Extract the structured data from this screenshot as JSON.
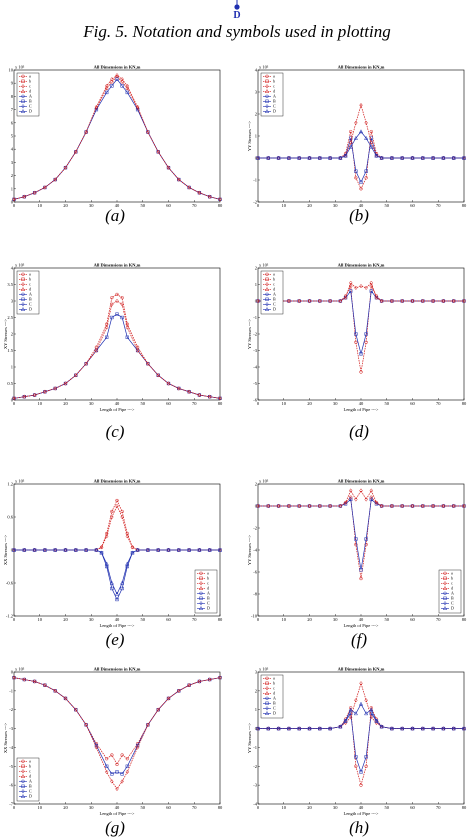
{
  "caption": "Fig.  5.  Notation and symbols used in plotting",
  "top_marker_letter": "D",
  "colors": {
    "red": "#d01818",
    "blue": "#1f2fb0",
    "axis": "#000000"
  },
  "chart_data": [
    {
      "id": "a",
      "label": "(a)",
      "type": "line",
      "title": "All Dimensions in KN,m",
      "xlabel": "",
      "ylabel": "",
      "xlim": [
        0,
        80
      ],
      "ylim": [
        0,
        10
      ],
      "yticks": [
        0,
        1,
        2,
        3,
        4,
        5,
        6,
        7,
        8,
        9,
        10
      ],
      "exponent": "x 10³",
      "legend": [
        "a",
        "b",
        "c",
        "d",
        "A",
        "B",
        "C",
        "D"
      ],
      "legend_position": "top-left",
      "x": [
        0,
        4,
        8,
        12,
        16,
        20,
        24,
        28,
        32,
        36,
        38,
        40,
        42,
        44,
        48,
        52,
        56,
        60,
        64,
        68,
        72,
        76,
        80
      ],
      "series": [
        {
          "values": [
            0.2,
            0.4,
            0.7,
            1.1,
            1.7,
            2.6,
            3.8,
            5.3,
            7.1,
            8.6,
            9.1,
            9.5,
            9.1,
            8.6,
            7.1,
            5.3,
            3.8,
            2.6,
            1.7,
            1.1,
            0.7,
            0.4,
            0.2
          ]
        },
        {
          "values": [
            0.2,
            0.4,
            0.7,
            1.1,
            1.7,
            2.6,
            3.8,
            5.3,
            7.0,
            8.3,
            8.8,
            9.3,
            8.8,
            8.3,
            7.0,
            5.3,
            3.8,
            2.6,
            1.7,
            1.1,
            0.7,
            0.4,
            0.2
          ]
        },
        {
          "values": [
            0.2,
            0.4,
            0.7,
            1.1,
            1.7,
            2.6,
            3.8,
            5.3,
            7.2,
            8.8,
            9.3,
            9.6,
            9.3,
            8.8,
            7.2,
            5.3,
            3.8,
            2.6,
            1.7,
            1.1,
            0.7,
            0.4,
            0.2
          ]
        }
      ]
    },
    {
      "id": "b",
      "label": "(b)",
      "type": "line",
      "title": "All Dimensions in KN,m",
      "xlabel": "",
      "ylabel": "YY Stresses --->",
      "xlim": [
        0,
        80
      ],
      "ylim": [
        -2,
        4
      ],
      "yticks": [
        -2,
        -1,
        0,
        1,
        2,
        3,
        4
      ],
      "exponent": "x 10³",
      "legend": [
        "a",
        "b",
        "c",
        "d",
        "A",
        "B",
        "C",
        "D"
      ],
      "legend_position": "top-left",
      "x": [
        0,
        4,
        8,
        12,
        16,
        20,
        24,
        28,
        32,
        34,
        36,
        38,
        40,
        42,
        44,
        46,
        48,
        52,
        56,
        60,
        64,
        68,
        72,
        76,
        80
      ],
      "series": [
        {
          "values": [
            0,
            0,
            0,
            0,
            0,
            0,
            0,
            0,
            0,
            0.2,
            1.2,
            -0.9,
            -1.4,
            -0.9,
            1.2,
            0.2,
            0,
            0,
            0,
            0,
            0,
            0,
            0,
            0,
            0
          ]
        },
        {
          "values": [
            0,
            0,
            0,
            0,
            0,
            0,
            0,
            0,
            0,
            0.1,
            0.9,
            -0.6,
            -1.1,
            -0.6,
            0.9,
            0.1,
            0,
            0,
            0,
            0,
            0,
            0,
            0,
            0,
            0
          ]
        },
        {
          "values": [
            0,
            0,
            0,
            0,
            0,
            0,
            0,
            0,
            0,
            0.1,
            0.7,
            1.6,
            2.4,
            1.6,
            0.7,
            0.1,
            0,
            0,
            0,
            0,
            0,
            0,
            0,
            0,
            0
          ]
        },
        {
          "values": [
            0,
            0,
            0,
            0,
            0,
            0,
            0,
            0,
            0,
            0.1,
            0.5,
            0.9,
            1.2,
            0.9,
            0.5,
            0.1,
            0,
            0,
            0,
            0,
            0,
            0,
            0,
            0,
            0
          ]
        }
      ]
    },
    {
      "id": "c",
      "label": "(c)",
      "type": "line",
      "title": "All Dimensions in KN,m",
      "xlabel": "Length of Pipe --->",
      "ylabel": "XY Stresses --->",
      "xlim": [
        0,
        80
      ],
      "ylim": [
        0,
        4
      ],
      "yticks": [
        0,
        0.5,
        1,
        1.5,
        2,
        2.5,
        3,
        3.5,
        4
      ],
      "exponent": "x 10³",
      "legend": [
        "a",
        "b",
        "c",
        "d",
        "A",
        "B",
        "C",
        "D"
      ],
      "legend_position": "top-left",
      "x": [
        0,
        4,
        8,
        12,
        16,
        20,
        24,
        28,
        32,
        36,
        38,
        40,
        42,
        44,
        48,
        52,
        56,
        60,
        64,
        68,
        72,
        76,
        80
      ],
      "series": [
        {
          "values": [
            0.05,
            0.1,
            0.15,
            0.25,
            0.35,
            0.5,
            0.75,
            1.1,
            1.6,
            2.3,
            3.1,
            3.2,
            3.1,
            2.3,
            1.6,
            1.1,
            0.75,
            0.5,
            0.35,
            0.25,
            0.15,
            0.1,
            0.05
          ]
        },
        {
          "values": [
            0.05,
            0.1,
            0.15,
            0.25,
            0.35,
            0.5,
            0.75,
            1.1,
            1.5,
            1.9,
            2.5,
            2.6,
            2.5,
            1.9,
            1.5,
            1.1,
            0.75,
            0.5,
            0.35,
            0.25,
            0.15,
            0.1,
            0.05
          ]
        },
        {
          "values": [
            0.05,
            0.1,
            0.15,
            0.25,
            0.35,
            0.5,
            0.75,
            1.1,
            1.5,
            2.2,
            2.9,
            3.0,
            2.9,
            2.2,
            1.5,
            1.1,
            0.75,
            0.5,
            0.35,
            0.25,
            0.15,
            0.1,
            0.05
          ]
        }
      ]
    },
    {
      "id": "d",
      "label": "(d)",
      "type": "line",
      "title": "All Dimensions in KN,m",
      "xlabel": "Length of Pipe --->",
      "ylabel": "YY Stresses --->",
      "xlim": [
        0,
        80
      ],
      "ylim": [
        -6,
        2
      ],
      "yticks": [
        -6,
        -5,
        -4,
        -3,
        -2,
        -1,
        0,
        1,
        2
      ],
      "exponent": "x 10³",
      "legend": [
        "a",
        "b",
        "c",
        "d",
        "A",
        "B",
        "C",
        "D"
      ],
      "legend_position": "top-left",
      "x": [
        0,
        4,
        8,
        12,
        16,
        20,
        24,
        28,
        32,
        34,
        36,
        38,
        40,
        42,
        44,
        46,
        48,
        52,
        56,
        60,
        64,
        68,
        72,
        76,
        80
      ],
      "series": [
        {
          "values": [
            0,
            0,
            0,
            0,
            0,
            0,
            0,
            0,
            0,
            0.3,
            0.9,
            -2.5,
            -4.3,
            -2.5,
            0.9,
            0.3,
            0,
            0,
            0,
            0,
            0,
            0,
            0,
            0,
            0
          ]
        },
        {
          "values": [
            0,
            0,
            0,
            0,
            0,
            0,
            0,
            0,
            0,
            0.2,
            0.6,
            -2.0,
            -3.2,
            -2.0,
            0.6,
            0.2,
            0,
            0,
            0,
            0,
            0,
            0,
            0,
            0,
            0
          ]
        },
        {
          "values": [
            0,
            0,
            0,
            0,
            0,
            0,
            0,
            0,
            0,
            0.2,
            1.1,
            0.8,
            0.9,
            0.8,
            1.1,
            0.2,
            0,
            0,
            0,
            0,
            0,
            0,
            0,
            0,
            0
          ]
        }
      ]
    },
    {
      "id": "e",
      "label": "(e)",
      "type": "line",
      "title": "All Dimensions in KN,m",
      "xlabel": "Length of Pipe --->",
      "ylabel": "XX Stresses --->",
      "xlim": [
        0,
        80
      ],
      "ylim": [
        -1.2,
        1.2
      ],
      "yticks": [
        -1.2,
        -0.6,
        0,
        0.6,
        1.2
      ],
      "exponent": "x 10³",
      "legend": [
        "a",
        "b",
        "c",
        "d",
        "A",
        "B",
        "C",
        "D"
      ],
      "legend_position": "bottom-right",
      "x": [
        0,
        4,
        8,
        12,
        16,
        20,
        24,
        28,
        32,
        34,
        36,
        38,
        40,
        42,
        44,
        46,
        48,
        52,
        56,
        60,
        64,
        68,
        72,
        76,
        80
      ],
      "series": [
        {
          "values": [
            0,
            0,
            0,
            0,
            0,
            0,
            0,
            0,
            0,
            0.05,
            0.3,
            0.7,
            0.9,
            0.7,
            0.3,
            0.05,
            0,
            0,
            0,
            0,
            0,
            0,
            0,
            0,
            0
          ]
        },
        {
          "values": [
            0,
            0,
            0,
            0,
            0,
            0,
            0,
            0,
            0,
            -0.05,
            -0.3,
            -0.7,
            -0.9,
            -0.7,
            -0.3,
            -0.05,
            0,
            0,
            0,
            0,
            0,
            0,
            0,
            0,
            0
          ]
        },
        {
          "values": [
            0,
            0,
            0,
            0,
            0,
            0,
            0,
            0,
            0,
            0.05,
            0.25,
            0.6,
            0.8,
            0.6,
            0.25,
            0.05,
            0,
            0,
            0,
            0,
            0,
            0,
            0,
            0,
            0
          ]
        },
        {
          "values": [
            0,
            0,
            0,
            0,
            0,
            0,
            0,
            0,
            0,
            -0.05,
            -0.25,
            -0.6,
            -0.8,
            -0.6,
            -0.25,
            -0.05,
            0,
            0,
            0,
            0,
            0,
            0,
            0,
            0,
            0
          ]
        }
      ]
    },
    {
      "id": "f",
      "label": "(f)",
      "type": "line",
      "title": "All Dimensions in KN,m",
      "xlabel": "Length of Pipe --->",
      "ylabel": "YY Stresses --->",
      "xlim": [
        0,
        80
      ],
      "ylim": [
        -10,
        2
      ],
      "yticks": [
        -10,
        -8,
        -6,
        -4,
        -2,
        0,
        2
      ],
      "exponent": "x 10³",
      "legend": [
        "a",
        "b",
        "c",
        "d",
        "A",
        "B",
        "C",
        "D"
      ],
      "legend_position": "bottom-right",
      "x": [
        0,
        4,
        8,
        12,
        16,
        20,
        24,
        28,
        32,
        34,
        36,
        38,
        40,
        42,
        44,
        46,
        48,
        52,
        56,
        60,
        64,
        68,
        72,
        76,
        80
      ],
      "series": [
        {
          "values": [
            0,
            0,
            0,
            0,
            0,
            0,
            0,
            0,
            0,
            0.3,
            0.8,
            -3.5,
            -6.6,
            -3.5,
            0.8,
            0.3,
            0,
            0,
            0,
            0,
            0,
            0,
            0,
            0,
            0
          ]
        },
        {
          "values": [
            0,
            0,
            0,
            0,
            0,
            0,
            0,
            0,
            0,
            0.2,
            0.6,
            -3.0,
            -5.8,
            -3.0,
            0.6,
            0.2,
            0,
            0,
            0,
            0,
            0,
            0,
            0,
            0,
            0
          ]
        },
        {
          "values": [
            0,
            0,
            0,
            0,
            0,
            0,
            0,
            0,
            0,
            0.3,
            1.4,
            0.6,
            1.4,
            0.6,
            1.4,
            0.3,
            0,
            0,
            0,
            0,
            0,
            0,
            0,
            0,
            0
          ]
        }
      ]
    },
    {
      "id": "g",
      "label": "(g)",
      "type": "line",
      "title": "All Dimensions in KN,m",
      "xlabel": "Length of Pipe --->",
      "ylabel": "XX Stresses --->",
      "xlim": [
        0,
        80
      ],
      "ylim": [
        -7,
        0
      ],
      "yticks": [
        -7,
        -6,
        -5,
        -4,
        -3,
        -2,
        -1,
        0
      ],
      "exponent": "x 10³",
      "legend": [
        "a",
        "b",
        "c",
        "d",
        "A",
        "B",
        "C",
        "D"
      ],
      "legend_position": "bottom-left",
      "x": [
        0,
        4,
        8,
        12,
        16,
        20,
        24,
        28,
        32,
        36,
        38,
        40,
        42,
        44,
        48,
        52,
        56,
        60,
        64,
        68,
        72,
        76,
        80
      ],
      "series": [
        {
          "values": [
            -0.3,
            -0.4,
            -0.5,
            -0.7,
            -1.0,
            -1.4,
            -2.0,
            -2.8,
            -3.8,
            -4.6,
            -4.4,
            -4.9,
            -4.4,
            -4.6,
            -3.8,
            -2.8,
            -2.0,
            -1.4,
            -1.0,
            -0.7,
            -0.5,
            -0.4,
            -0.3
          ]
        },
        {
          "values": [
            -0.3,
            -0.4,
            -0.5,
            -0.7,
            -1.0,
            -1.4,
            -2.0,
            -2.8,
            -3.9,
            -5.0,
            -5.4,
            -5.3,
            -5.4,
            -5.0,
            -3.9,
            -2.8,
            -2.0,
            -1.4,
            -1.0,
            -0.7,
            -0.5,
            -0.4,
            -0.3
          ]
        },
        {
          "values": [
            -0.3,
            -0.4,
            -0.5,
            -0.7,
            -1.0,
            -1.4,
            -2.0,
            -2.8,
            -4.0,
            -5.3,
            -5.8,
            -6.2,
            -5.8,
            -5.3,
            -4.0,
            -2.8,
            -2.0,
            -1.4,
            -1.0,
            -0.7,
            -0.5,
            -0.4,
            -0.3
          ]
        }
      ]
    },
    {
      "id": "h",
      "label": "(h)",
      "type": "line",
      "title": "All Dimensions in KN,m",
      "xlabel": "Length of Pipe --->",
      "ylabel": "YY Stresses --->",
      "xlim": [
        0,
        80
      ],
      "ylim": [
        -4,
        3
      ],
      "yticks": [
        -4,
        -3,
        -2,
        -1,
        0,
        1,
        2,
        3
      ],
      "exponent": "x 10³",
      "legend": [
        "a",
        "b",
        "c",
        "d",
        "A",
        "B",
        "C",
        "D"
      ],
      "legend_position": "top-left",
      "x": [
        0,
        4,
        8,
        12,
        16,
        20,
        24,
        28,
        32,
        34,
        36,
        38,
        40,
        42,
        44,
        46,
        48,
        52,
        56,
        60,
        64,
        68,
        72,
        76,
        80
      ],
      "series": [
        {
          "values": [
            0,
            0,
            0,
            0,
            0,
            0,
            0,
            0,
            0.1,
            0.5,
            1.1,
            -2.0,
            -3.0,
            -2.0,
            1.1,
            0.5,
            0.1,
            0,
            0,
            0,
            0,
            0,
            0,
            0,
            0
          ]
        },
        {
          "values": [
            0,
            0,
            0,
            0,
            0,
            0,
            0,
            0,
            0.1,
            0.4,
            0.8,
            -1.5,
            -2.3,
            -1.5,
            0.8,
            0.4,
            0.1,
            0,
            0,
            0,
            0,
            0,
            0,
            0,
            0
          ]
        },
        {
          "values": [
            0,
            0,
            0,
            0,
            0,
            0,
            0,
            0,
            0.1,
            0.3,
            0.6,
            1.5,
            2.4,
            1.5,
            0.6,
            0.3,
            0.1,
            0,
            0,
            0,
            0,
            0,
            0,
            0,
            0
          ]
        },
        {
          "values": [
            0,
            0,
            0,
            0,
            0,
            0,
            0,
            0,
            0.1,
            0.4,
            1.0,
            0.8,
            1.3,
            0.8,
            1.0,
            0.4,
            0.1,
            0,
            0,
            0,
            0,
            0,
            0,
            0,
            0
          ]
        }
      ]
    }
  ]
}
